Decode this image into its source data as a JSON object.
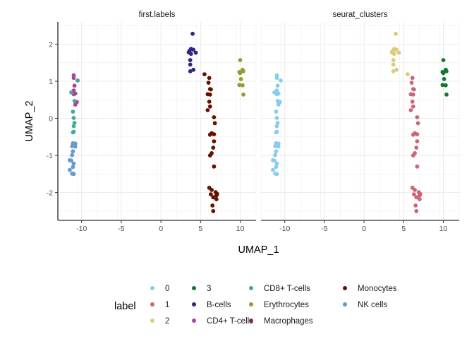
{
  "chart_data": {
    "type": "scatter",
    "xlabel": "UMAP_1",
    "ylabel": "UMAP_2",
    "xlim": [
      -13,
      12
    ],
    "ylim": [
      -2.75,
      2.6
    ],
    "x_ticks": [
      -10,
      -5,
      0,
      5,
      10
    ],
    "x_tick_labels": [
      "-10",
      "-5",
      "0",
      "5",
      "10"
    ],
    "y_ticks": [
      -2,
      -1,
      0,
      1,
      2
    ],
    "y_tick_labels": [
      "-2",
      "-1",
      "0",
      "1",
      "2"
    ],
    "grid": true,
    "legend_title": "label",
    "legend_position": "bottom",
    "colors": {
      "0": "#88CCEE",
      "1": "#CC6677",
      "2": "#DDCC77",
      "3": "#117733",
      "B-cells": "#332288",
      "CD4+ T-cells": "#AA4499",
      "CD8+ T-cells": "#44AA99",
      "Erythrocytes": "#999933",
      "Macrophages": "#882255",
      "Monocytes": "#661100",
      "NK cells": "#6699CC"
    },
    "legend": [
      [
        "0",
        "1",
        "2"
      ],
      [
        "3",
        "B-cells",
        "CD4+ T-cells"
      ],
      [
        "CD8+ T-cells",
        "Erythrocytes",
        "Macrophages"
      ],
      [
        "Monocytes",
        "NK cells"
      ]
    ],
    "panels": [
      {
        "title": "first.labels",
        "series": [
          {
            "name": "CD4+ T-cells",
            "points": [
              [
                -11.0,
                1.16
              ],
              [
                -11.0,
                1.09
              ],
              [
                -10.5,
                1.02
              ],
              [
                -10.9,
                0.88
              ],
              [
                -11.0,
                0.75
              ],
              [
                -10.8,
                0.67
              ],
              [
                -11.0,
                0.65
              ],
              [
                -10.6,
                0.44
              ],
              [
                -10.8,
                0.37
              ]
            ]
          },
          {
            "name": "CD8+ T-cells",
            "points": [
              [
                -10.5,
                1.02
              ],
              [
                -11.1,
                0.18
              ],
              [
                -11.0,
                0.01
              ],
              [
                -10.9,
                -0.12
              ],
              [
                -11.0,
                -0.21
              ],
              [
                -11.0,
                -0.36
              ],
              [
                -11.1,
                -0.38
              ],
              [
                -10.9,
                0.47
              ],
              [
                -11.3,
                0.7
              ]
            ]
          },
          {
            "name": "NK cells",
            "points": [
              [
                -11.1,
                -0.67
              ],
              [
                -10.8,
                -0.68
              ],
              [
                -11.2,
                -0.75
              ],
              [
                -10.8,
                -0.76
              ],
              [
                -11.1,
                -0.89
              ],
              [
                -11.2,
                -0.99
              ],
              [
                -11.5,
                -1.13
              ],
              [
                -11.3,
                -1.14
              ],
              [
                -11.0,
                -1.22
              ],
              [
                -11.1,
                -1.31
              ],
              [
                -11.5,
                -1.39
              ],
              [
                -11.2,
                -1.49
              ],
              [
                -11.0,
                -1.5
              ]
            ]
          },
          {
            "name": "B-cells",
            "points": [
              [
                4.0,
                2.28
              ],
              [
                3.8,
                1.87
              ],
              [
                4.1,
                1.85
              ],
              [
                3.6,
                1.82
              ],
              [
                3.5,
                1.78
              ],
              [
                4.4,
                1.77
              ],
              [
                3.8,
                1.74
              ],
              [
                3.7,
                1.57
              ],
              [
                3.7,
                1.45
              ],
              [
                4.1,
                1.31
              ],
              [
                3.7,
                1.27
              ]
            ]
          },
          {
            "name": "Monocytes",
            "points": [
              [
                5.5,
                1.19
              ],
              [
                6.1,
                1.09
              ],
              [
                6.0,
                0.96
              ],
              [
                6.2,
                0.79
              ],
              [
                6.3,
                0.78
              ],
              [
                5.9,
                0.65
              ],
              [
                6.2,
                0.64
              ],
              [
                6.1,
                0.45
              ],
              [
                6.2,
                0.32
              ],
              [
                5.9,
                0.22
              ],
              [
                6.7,
                0.03
              ],
              [
                6.8,
                -0.13
              ],
              [
                6.4,
                -0.4
              ],
              [
                6.7,
                -0.43
              ],
              [
                6.2,
                -0.44
              ],
              [
                6.7,
                -0.62
              ],
              [
                6.6,
                -0.79
              ],
              [
                6.4,
                -0.94
              ],
              [
                6.2,
                -1.0
              ],
              [
                6.7,
                -1.3
              ],
              [
                6.1,
                -1.87
              ],
              [
                6.4,
                -1.93
              ],
              [
                6.9,
                -1.99
              ],
              [
                6.3,
                -2.05
              ],
              [
                7.0,
                -2.08
              ],
              [
                7.1,
                -2.04
              ],
              [
                6.6,
                -2.13
              ],
              [
                7.0,
                -2.18
              ],
              [
                6.5,
                -2.35
              ],
              [
                6.6,
                -2.5
              ]
            ]
          },
          {
            "name": "Erythrocytes",
            "points": [
              [
                10.0,
                1.57
              ],
              [
                10.3,
                1.31
              ],
              [
                10.4,
                1.27
              ],
              [
                9.9,
                1.25
              ],
              [
                10.0,
                1.22
              ],
              [
                10.1,
                1.06
              ],
              [
                9.9,
                0.9
              ],
              [
                10.3,
                0.89
              ],
              [
                10.4,
                0.64
              ]
            ]
          }
        ]
      },
      {
        "title": "seurat_clusters",
        "series": [
          {
            "name": "0",
            "points": [
              [
                -11.0,
                1.16
              ],
              [
                -11.0,
                1.09
              ],
              [
                -10.5,
                1.02
              ],
              [
                -10.9,
                0.88
              ],
              [
                -11.0,
                0.75
              ],
              [
                -10.8,
                0.67
              ],
              [
                -11.0,
                0.65
              ],
              [
                -10.6,
                0.44
              ],
              [
                -10.8,
                0.37
              ],
              [
                -11.1,
                0.18
              ],
              [
                -11.0,
                0.01
              ],
              [
                -10.9,
                -0.12
              ],
              [
                -11.0,
                -0.21
              ],
              [
                -11.0,
                -0.36
              ],
              [
                -11.1,
                -0.38
              ],
              [
                -10.9,
                0.47
              ],
              [
                -11.3,
                0.7
              ],
              [
                -11.1,
                -0.67
              ],
              [
                -10.8,
                -0.68
              ],
              [
                -11.2,
                -0.75
              ],
              [
                -10.8,
                -0.76
              ],
              [
                -11.1,
                -0.89
              ],
              [
                -11.2,
                -0.99
              ],
              [
                -11.5,
                -1.13
              ],
              [
                -11.3,
                -1.14
              ],
              [
                -11.0,
                -1.22
              ],
              [
                -11.1,
                -1.31
              ],
              [
                -11.5,
                -1.39
              ],
              [
                -11.2,
                -1.49
              ],
              [
                -11.0,
                -1.5
              ]
            ]
          },
          {
            "name": "2",
            "points": [
              [
                4.0,
                2.28
              ],
              [
                3.8,
                1.87
              ],
              [
                4.1,
                1.85
              ],
              [
                3.6,
                1.82
              ],
              [
                3.5,
                1.78
              ],
              [
                4.4,
                1.77
              ],
              [
                3.8,
                1.74
              ],
              [
                3.7,
                1.57
              ],
              [
                3.7,
                1.45
              ],
              [
                4.1,
                1.31
              ],
              [
                3.7,
                1.27
              ],
              [
                5.5,
                1.19
              ]
            ]
          },
          {
            "name": "1",
            "points": [
              [
                6.1,
                1.09
              ],
              [
                6.0,
                0.96
              ],
              [
                6.2,
                0.79
              ],
              [
                6.3,
                0.78
              ],
              [
                5.9,
                0.65
              ],
              [
                6.2,
                0.64
              ],
              [
                6.1,
                0.45
              ],
              [
                6.2,
                0.32
              ],
              [
                5.9,
                0.22
              ],
              [
                6.7,
                0.03
              ],
              [
                6.8,
                -0.13
              ],
              [
                6.4,
                -0.4
              ],
              [
                6.7,
                -0.43
              ],
              [
                6.2,
                -0.44
              ],
              [
                6.7,
                -0.62
              ],
              [
                6.6,
                -0.79
              ],
              [
                6.4,
                -0.94
              ],
              [
                6.2,
                -1.0
              ],
              [
                6.7,
                -1.3
              ],
              [
                6.1,
                -1.87
              ],
              [
                6.4,
                -1.93
              ],
              [
                6.9,
                -1.99
              ],
              [
                6.3,
                -2.05
              ],
              [
                7.0,
                -2.08
              ],
              [
                7.1,
                -2.04
              ],
              [
                6.6,
                -2.13
              ],
              [
                7.0,
                -2.18
              ],
              [
                6.5,
                -2.35
              ],
              [
                6.6,
                -2.5
              ]
            ]
          },
          {
            "name": "3",
            "points": [
              [
                10.0,
                1.57
              ],
              [
                10.3,
                1.31
              ],
              [
                10.4,
                1.27
              ],
              [
                9.9,
                1.25
              ],
              [
                10.0,
                1.22
              ],
              [
                10.1,
                1.06
              ],
              [
                9.9,
                0.9
              ],
              [
                10.3,
                0.89
              ],
              [
                10.4,
                0.64
              ]
            ]
          }
        ]
      }
    ]
  }
}
